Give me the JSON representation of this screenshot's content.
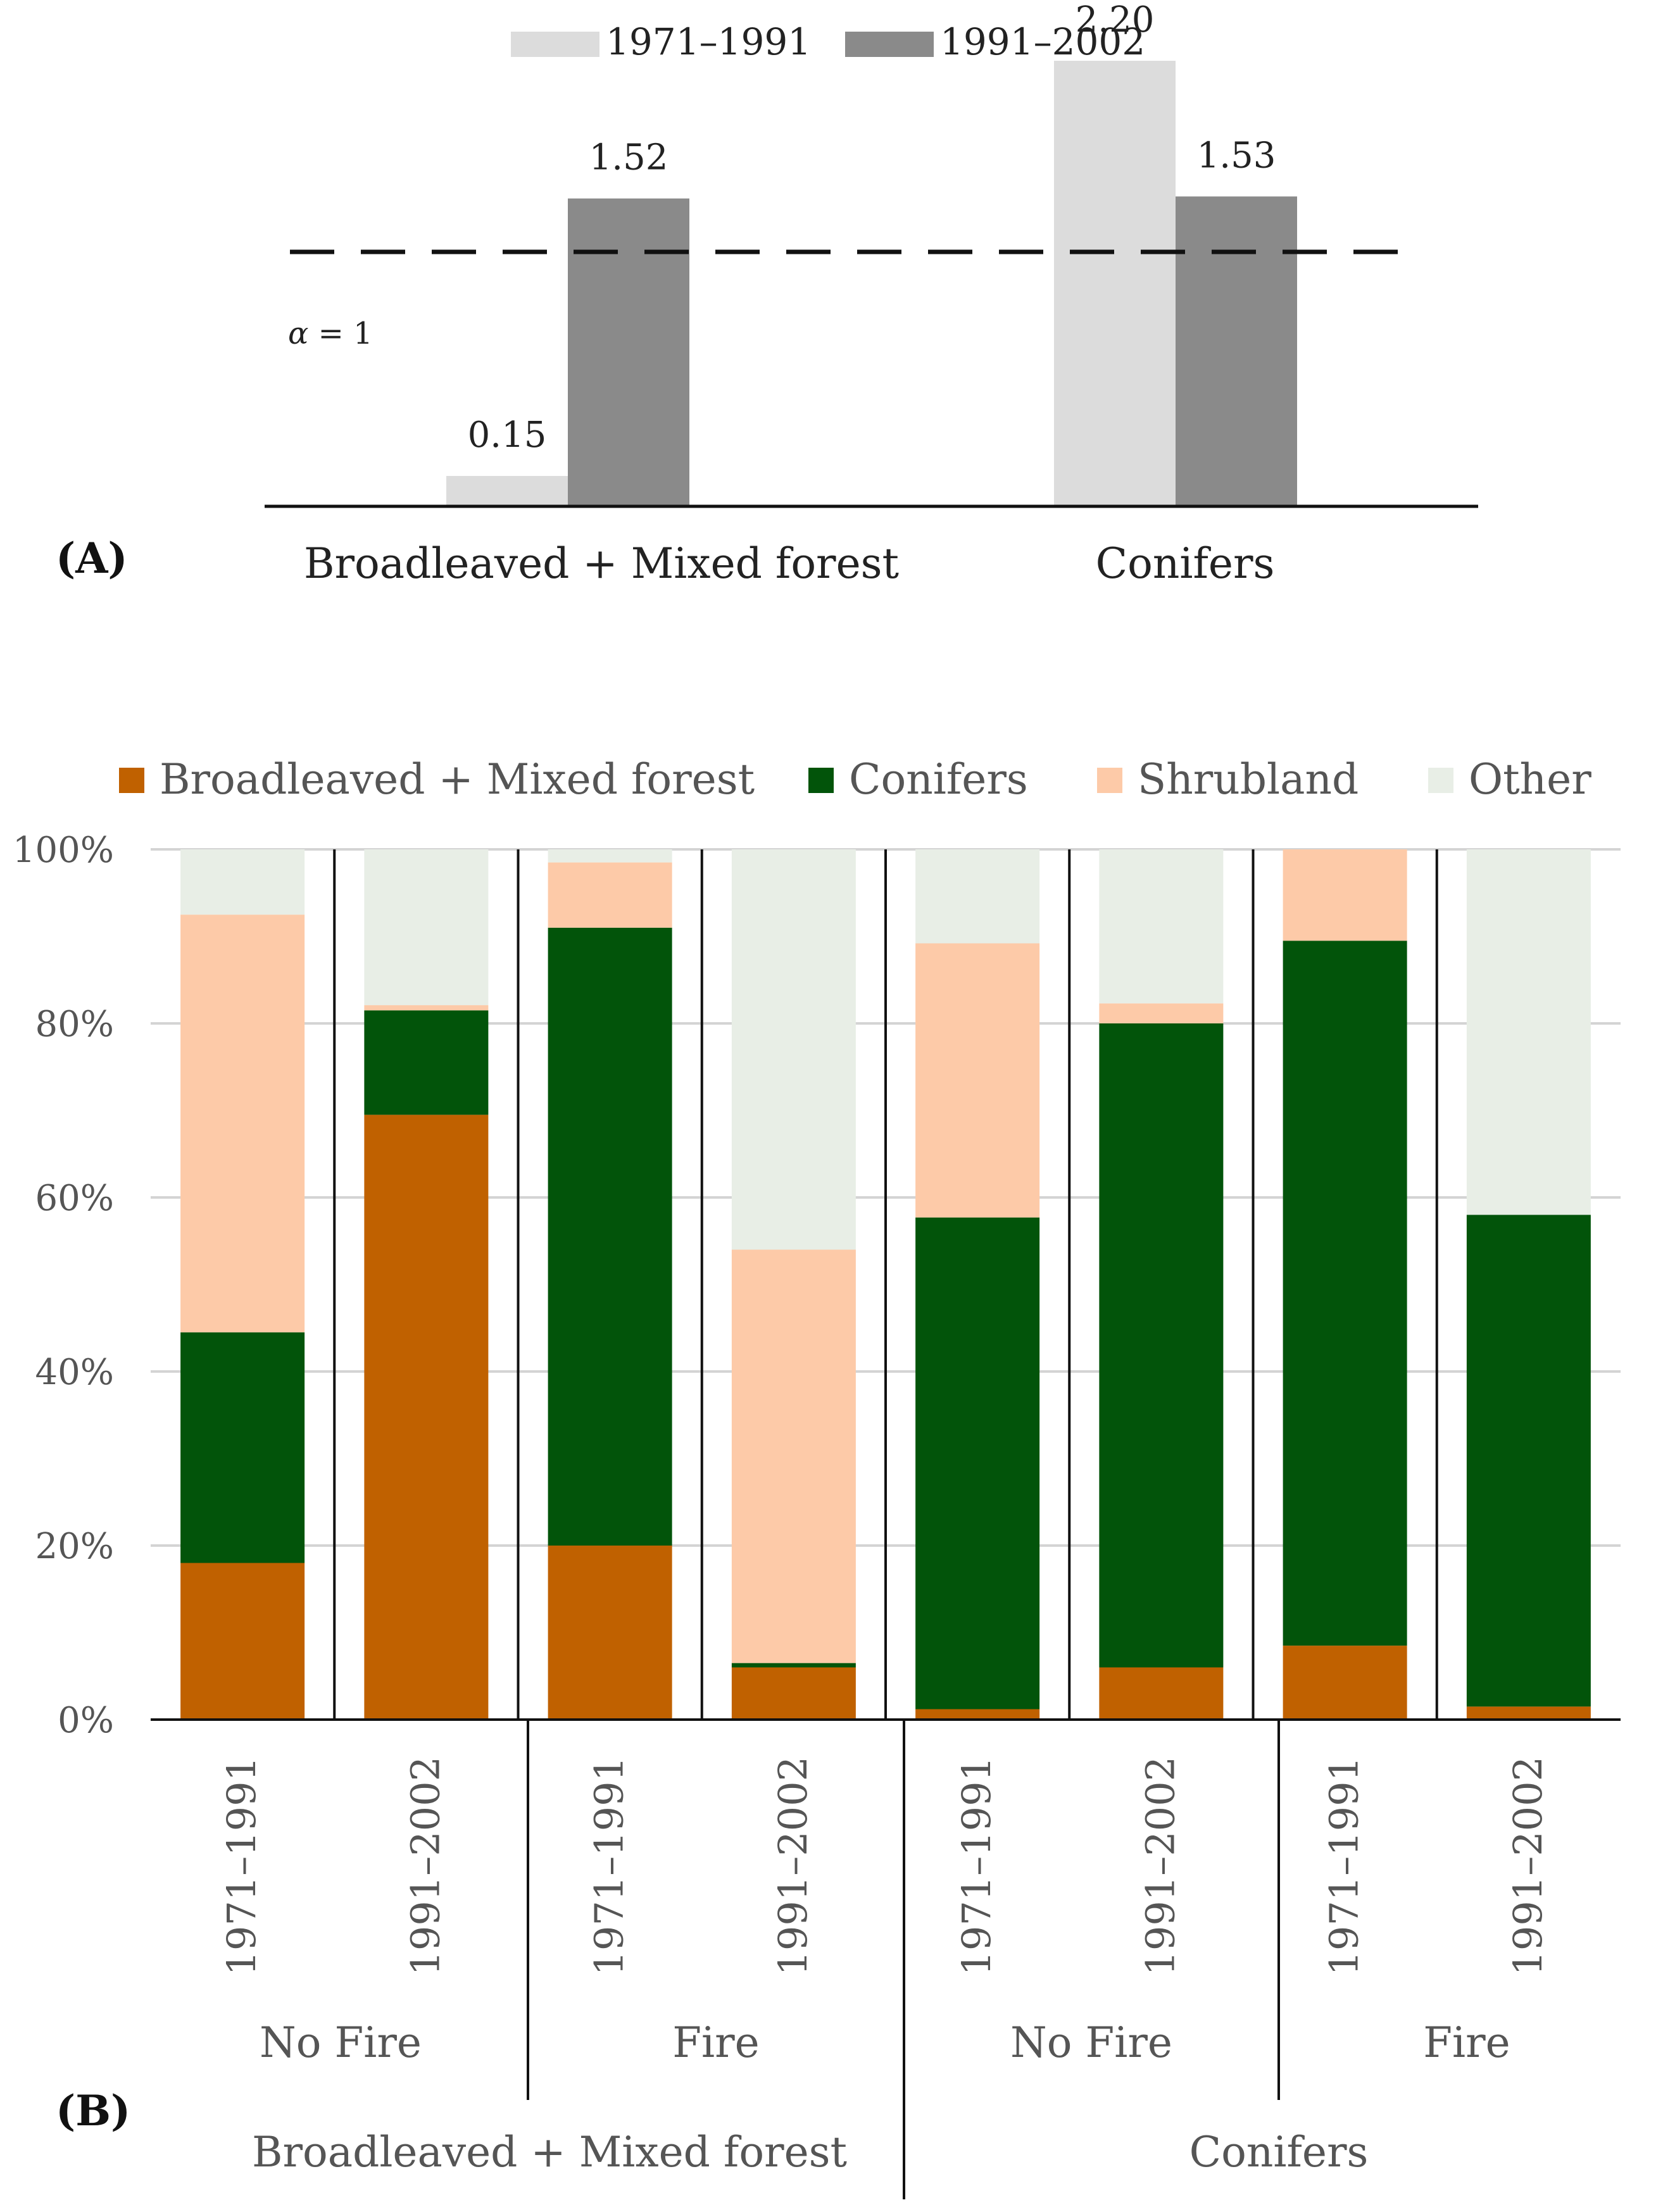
{
  "chart_data": [
    {
      "panel_label": "(A)",
      "type": "bar",
      "legend": [
        "1971–1991",
        "1991–2002"
      ],
      "categories": [
        "Broadleaved + Mixed forest",
        "Conifers"
      ],
      "series": [
        {
          "name": "1971–1991",
          "values": [
            0.15,
            2.2
          ],
          "labels": [
            "0.15",
            "2.20"
          ],
          "color": "#dcdcdc"
        },
        {
          "name": "1991–2002",
          "values": [
            1.52,
            1.53
          ],
          "labels": [
            "1.52",
            "1.53"
          ],
          "color": "#8a8a8a"
        }
      ],
      "reference_line": {
        "value": 1,
        "label_symbol": "α",
        "label_rest": " = 1"
      },
      "ylim": [
        0,
        2.2
      ]
    },
    {
      "panel_label": "(B)",
      "type": "bar",
      "stacked": true,
      "legend": [
        "Broadleaved + Mixed forest",
        "Conifers",
        "Shrubland",
        "Other"
      ],
      "colors": {
        "Broadleaved + Mixed forest": "#c06100",
        "Conifers": "#02540a",
        "Shrubland": "#fdcaa8",
        "Other": "#e8eee6"
      },
      "y_ticks": [
        "0%",
        "20%",
        "40%",
        "60%",
        "80%",
        "100%"
      ],
      "ylim": [
        0,
        100
      ],
      "categories": [
        "1971–1991",
        "1991–2002",
        "1971–1991",
        "1991–2002",
        "1971–1991",
        "1991–2002",
        "1971–1991",
        "1991–2002"
      ],
      "fire_groups": [
        "No Fire",
        "Fire",
        "No Fire",
        "Fire"
      ],
      "forest_groups": [
        "Broadleaved + Mixed forest",
        "Conifers"
      ],
      "series": [
        {
          "name": "Broadleaved + Mixed forest",
          "values": [
            18,
            69.5,
            20,
            6,
            1.2,
            6,
            8.5,
            1.5
          ]
        },
        {
          "name": "Conifers",
          "values": [
            26.5,
            12,
            71,
            0.5,
            56.5,
            74,
            81,
            56.5
          ]
        },
        {
          "name": "Shrubland",
          "values": [
            48,
            0.6,
            7.5,
            47.5,
            31.5,
            2.3,
            10.5,
            0
          ]
        },
        {
          "name": "Other",
          "values": [
            7.5,
            17.9,
            1.5,
            46,
            10.8,
            17.7,
            0,
            42
          ]
        }
      ]
    }
  ]
}
